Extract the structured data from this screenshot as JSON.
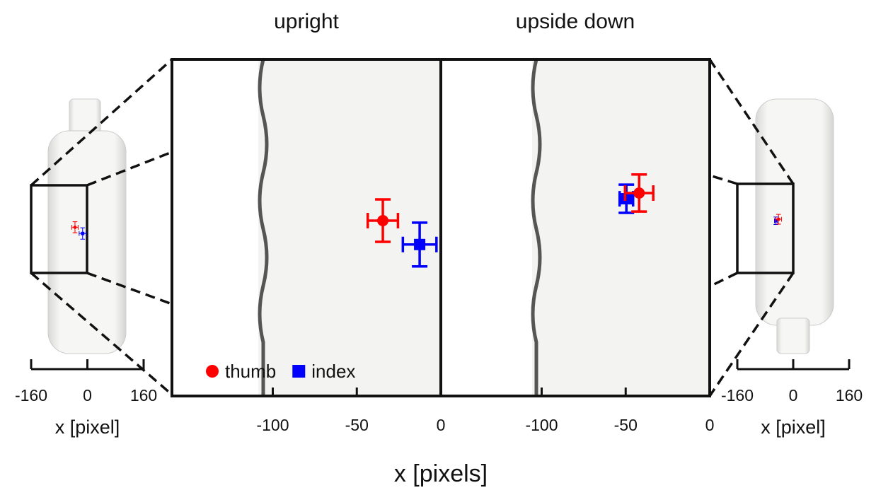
{
  "chart_data": [
    {
      "type": "errorbar",
      "title": "upright",
      "xlim": [
        -160,
        0
      ],
      "xticks": [
        -100,
        -50,
        0
      ],
      "ylim": [
        -100,
        100
      ],
      "legend": true,
      "series": [
        {
          "name": "thumb",
          "color": "#ff0000",
          "marker": "circle",
          "x": [
            -34.5
          ],
          "y": [
            4.2
          ],
          "xerr": [
            9
          ],
          "yerr": [
            12.6
          ]
        },
        {
          "name": "index",
          "color": "#0000ff",
          "marker": "square",
          "x": [
            -12.6
          ],
          "y": [
            -10
          ],
          "xerr": [
            10
          ],
          "yerr": [
            13
          ]
        }
      ]
    },
    {
      "type": "errorbar",
      "title": "upside down",
      "xlim": [
        -160,
        0
      ],
      "xticks": [
        -100,
        -50,
        0
      ],
      "ylim": [
        -100,
        100
      ],
      "legend": false,
      "series": [
        {
          "color": "#0000ff",
          "marker": "square",
          "x": [
            -49.6
          ],
          "y": [
            17.2
          ],
          "xerr": [
            4
          ],
          "yerr": [
            8.4
          ]
        },
        {
          "color": "#ff0000",
          "marker": "circle",
          "x": [
            -42
          ],
          "y": [
            20.6
          ],
          "xerr": [
            8.4
          ],
          "yerr": [
            11
          ]
        }
      ]
    }
  ],
  "figure": {
    "xlabel": "x [pixels]"
  },
  "insets": [
    {
      "xlim": [
        -160,
        160
      ],
      "xticks": [
        -160,
        0,
        160
      ],
      "xlabel": "x [pixel]"
    },
    {
      "xlim": [
        -160,
        160
      ],
      "xticks": [
        -160,
        0,
        160
      ],
      "xlabel": "x [pixel]"
    }
  ]
}
